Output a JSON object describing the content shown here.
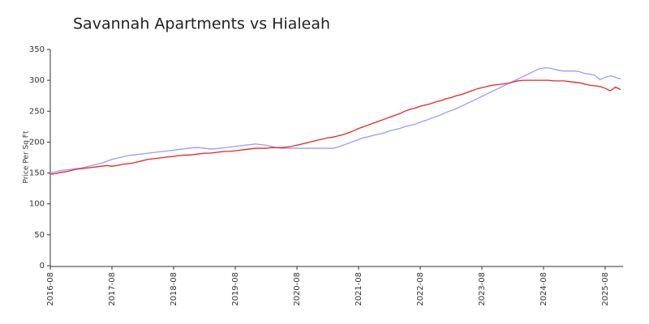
{
  "chart_data": {
    "type": "line",
    "title": "Savannah Apartments vs Hialeah",
    "y_label": "Price Per Sq Ft",
    "x": [
      "2016-08",
      "2016-09",
      "2016-10",
      "2016-11",
      "2016-12",
      "2017-01",
      "2017-02",
      "2017-03",
      "2017-04",
      "2017-05",
      "2017-06",
      "2017-07",
      "2017-08",
      "2017-09",
      "2017-10",
      "2017-11",
      "2017-12",
      "2018-01",
      "2018-02",
      "2018-03",
      "2018-04",
      "2018-05",
      "2018-06",
      "2018-07",
      "2018-08",
      "2018-09",
      "2018-10",
      "2018-11",
      "2018-12",
      "2019-01",
      "2019-02",
      "2019-03",
      "2019-04",
      "2019-05",
      "2019-06",
      "2019-07",
      "2019-08",
      "2019-09",
      "2019-10",
      "2019-11",
      "2019-12",
      "2020-01",
      "2020-02",
      "2020-03",
      "2020-04",
      "2020-05",
      "2020-06",
      "2020-07",
      "2020-08",
      "2020-09",
      "2020-10",
      "2020-11",
      "2020-12",
      "2021-01",
      "2021-02",
      "2021-03",
      "2021-04",
      "2021-05",
      "2021-06",
      "2021-07",
      "2021-08",
      "2021-09",
      "2021-10",
      "2021-11",
      "2021-12",
      "2022-01",
      "2022-02",
      "2022-03",
      "2022-04",
      "2022-05",
      "2022-06",
      "2022-07",
      "2022-08",
      "2022-09",
      "2022-10",
      "2022-11",
      "2022-12",
      "2023-01",
      "2023-02",
      "2023-03",
      "2023-04",
      "2023-05",
      "2023-06",
      "2023-07",
      "2023-08",
      "2023-09",
      "2023-10",
      "2023-11",
      "2023-12",
      "2024-01",
      "2024-02",
      "2024-03",
      "2024-04",
      "2024-05",
      "2024-06",
      "2024-07",
      "2024-08",
      "2024-09",
      "2024-10",
      "2024-11",
      "2024-12",
      "2025-01",
      "2025-02",
      "2025-03",
      "2025-04",
      "2025-05",
      "2025-06",
      "2025-07",
      "2025-08",
      "2025-09",
      "2025-10",
      "2025-11"
    ],
    "series": [
      {
        "color": "#9999ff",
        "values": [
          150,
          152,
          154,
          155,
          156,
          157,
          158,
          160,
          162,
          164,
          166,
          169,
          172,
          174,
          176,
          178,
          179,
          180,
          181,
          182,
          183,
          184,
          185,
          186,
          187,
          188,
          189,
          190,
          191,
          191,
          190,
          189,
          189,
          190,
          191,
          192,
          193,
          194,
          195,
          196,
          197,
          196,
          195,
          193,
          191,
          190,
          190,
          190,
          190,
          190,
          190,
          190,
          190,
          190,
          190,
          190,
          192,
          195,
          198,
          201,
          204,
          207,
          209,
          211,
          213,
          215,
          218,
          220,
          222,
          225,
          227,
          229,
          232,
          235,
          238,
          241,
          244,
          248,
          251,
          254,
          258,
          262,
          266,
          270,
          274,
          278,
          282,
          286,
          290,
          294,
          298,
          302,
          306,
          310,
          314,
          318,
          320,
          320,
          318,
          316,
          315,
          315,
          315,
          314,
          311,
          310,
          308,
          301,
          305,
          307,
          305,
          302
        ]
      },
      {
        "color": "#ee2222",
        "values": [
          148,
          149,
          151,
          152,
          154,
          156,
          157,
          158,
          159,
          160,
          161,
          162,
          161,
          162,
          164,
          165,
          166,
          168,
          170,
          172,
          173,
          174,
          175,
          176,
          177,
          178,
          179,
          179,
          180,
          181,
          182,
          182,
          183,
          184,
          185,
          185,
          186,
          187,
          188,
          189,
          190,
          190,
          190,
          191,
          191,
          191,
          192,
          193,
          195,
          197,
          199,
          201,
          203,
          205,
          207,
          208,
          210,
          212,
          215,
          218,
          222,
          225,
          228,
          231,
          234,
          237,
          240,
          243,
          246,
          250,
          253,
          255,
          258,
          260,
          262,
          265,
          267,
          270,
          272,
          275,
          277,
          280,
          283,
          286,
          288,
          290,
          292,
          293,
          294,
          295,
          297,
          299,
          300,
          300,
          300,
          300,
          300,
          300,
          299,
          299,
          299,
          298,
          297,
          296,
          294,
          292,
          291,
          290,
          287,
          283,
          289,
          285
        ]
      }
    ],
    "ylim": [
      0,
      350
    ],
    "yticks": [
      0,
      50,
      100,
      150,
      200,
      250,
      300,
      350
    ]
  }
}
